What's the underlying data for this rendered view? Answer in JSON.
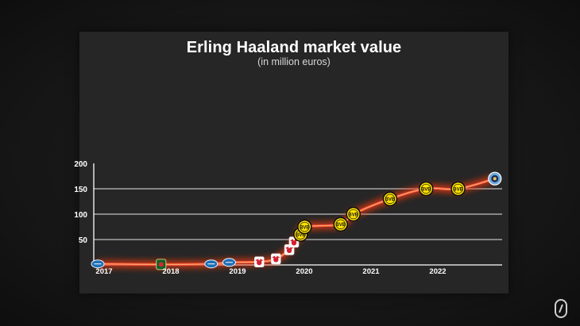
{
  "chart_data": {
    "type": "line",
    "title": "Erling Haaland market value",
    "subtitle": "(in million euros)",
    "xlabel": "",
    "ylabel": "",
    "x_ticks": [
      "2017",
      "2018",
      "2019",
      "2020",
      "2021",
      "2022"
    ],
    "y_ticks": [
      50,
      100,
      150,
      200
    ],
    "ylim": [
      0,
      200
    ],
    "grid": "horizontal",
    "series": [
      {
        "x": [
          2017.0,
          2017.95,
          2018.7,
          2018.97,
          2019.42,
          2019.67,
          2019.87,
          2019.94,
          2020.04,
          2020.1,
          2020.64,
          2020.83,
          2021.38,
          2021.92,
          2022.4,
          2022.95
        ],
        "y": [
          2,
          1,
          2,
          5,
          6,
          12,
          30,
          45,
          60,
          75,
          80,
          100,
          130,
          150,
          150,
          170
        ],
        "clubs": [
          "molde",
          "bryne",
          "molde",
          "molde",
          "salzburg",
          "salzburg",
          "salzburg",
          "salzburg",
          "dortmund",
          "dortmund",
          "dortmund",
          "dortmund",
          "dortmund",
          "dortmund",
          "dortmund",
          "man-city"
        ]
      }
    ],
    "colors": {
      "line": "#ff5a2c",
      "glow": "#ff3a10",
      "grid": "#e6e6e6",
      "axis": "#ffffff",
      "dortmund": "#fde100",
      "salzburg": "#d4202f",
      "molde": "#1f6fb5",
      "bryne": "#0f5f2e",
      "man-city": "#6cabdd"
    }
  }
}
